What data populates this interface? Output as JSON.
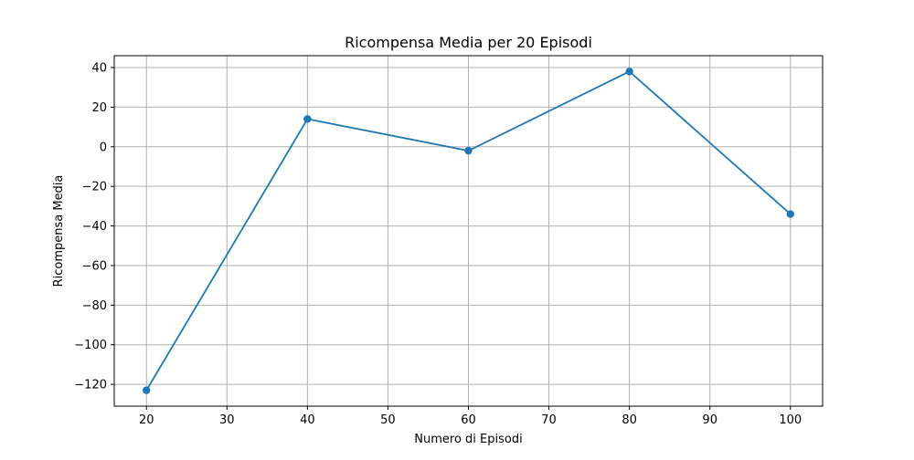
{
  "chart_data": {
    "type": "line",
    "title": "Ricompensa Media per 20 Episodi",
    "xlabel": "Numero di Episodi",
    "ylabel": "Ricompensa Media",
    "xlim": [
      16,
      104
    ],
    "ylim": [
      -131,
      46
    ],
    "xticks": [
      20,
      30,
      40,
      50,
      60,
      70,
      80,
      90,
      100
    ],
    "yticks": [
      -120,
      -100,
      -80,
      -60,
      -40,
      -20,
      0,
      20,
      40
    ],
    "grid": true,
    "series": [
      {
        "x": [
          20,
          40,
          60,
          80,
          100
        ],
        "y": [
          -123,
          14,
          -2,
          38,
          -34
        ],
        "color": "#1f77b4",
        "marker": "circle"
      }
    ]
  }
}
